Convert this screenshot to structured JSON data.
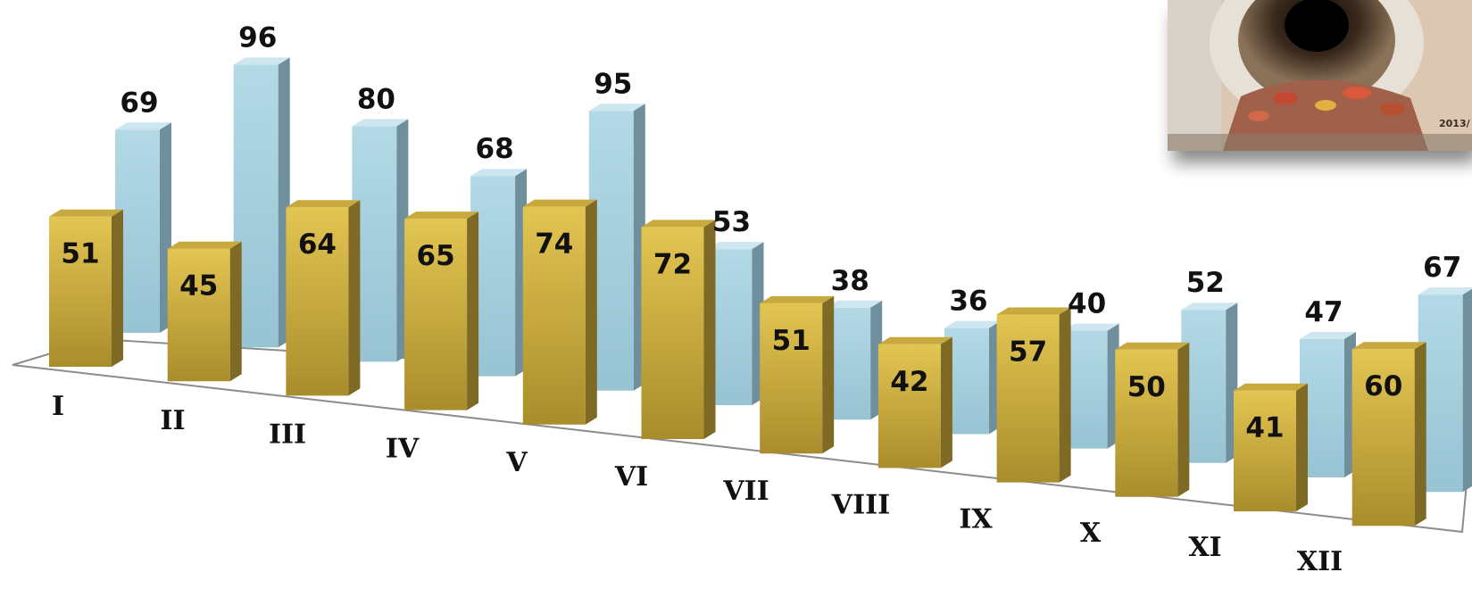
{
  "chart_data": {
    "type": "bar",
    "categories": [
      "I",
      "II",
      "III",
      "IV",
      "V",
      "VI",
      "VII",
      "VIII",
      "IX",
      "X",
      "XI",
      "XII"
    ],
    "series": [
      {
        "values": [
          51,
          45,
          64,
          65,
          74,
          72,
          51,
          42,
          57,
          50,
          41,
          60
        ],
        "color": "#d4b23e"
      },
      {
        "values": [
          69,
          96,
          80,
          68,
          95,
          53,
          38,
          36,
          40,
          52,
          47,
          67
        ],
        "color": "#a8d0de"
      }
    ],
    "style": "3d-clustered-column",
    "grid": false,
    "legend": "none"
  },
  "photo": {
    "icon": "sewer-pipe-photo",
    "caption": "2013/"
  }
}
